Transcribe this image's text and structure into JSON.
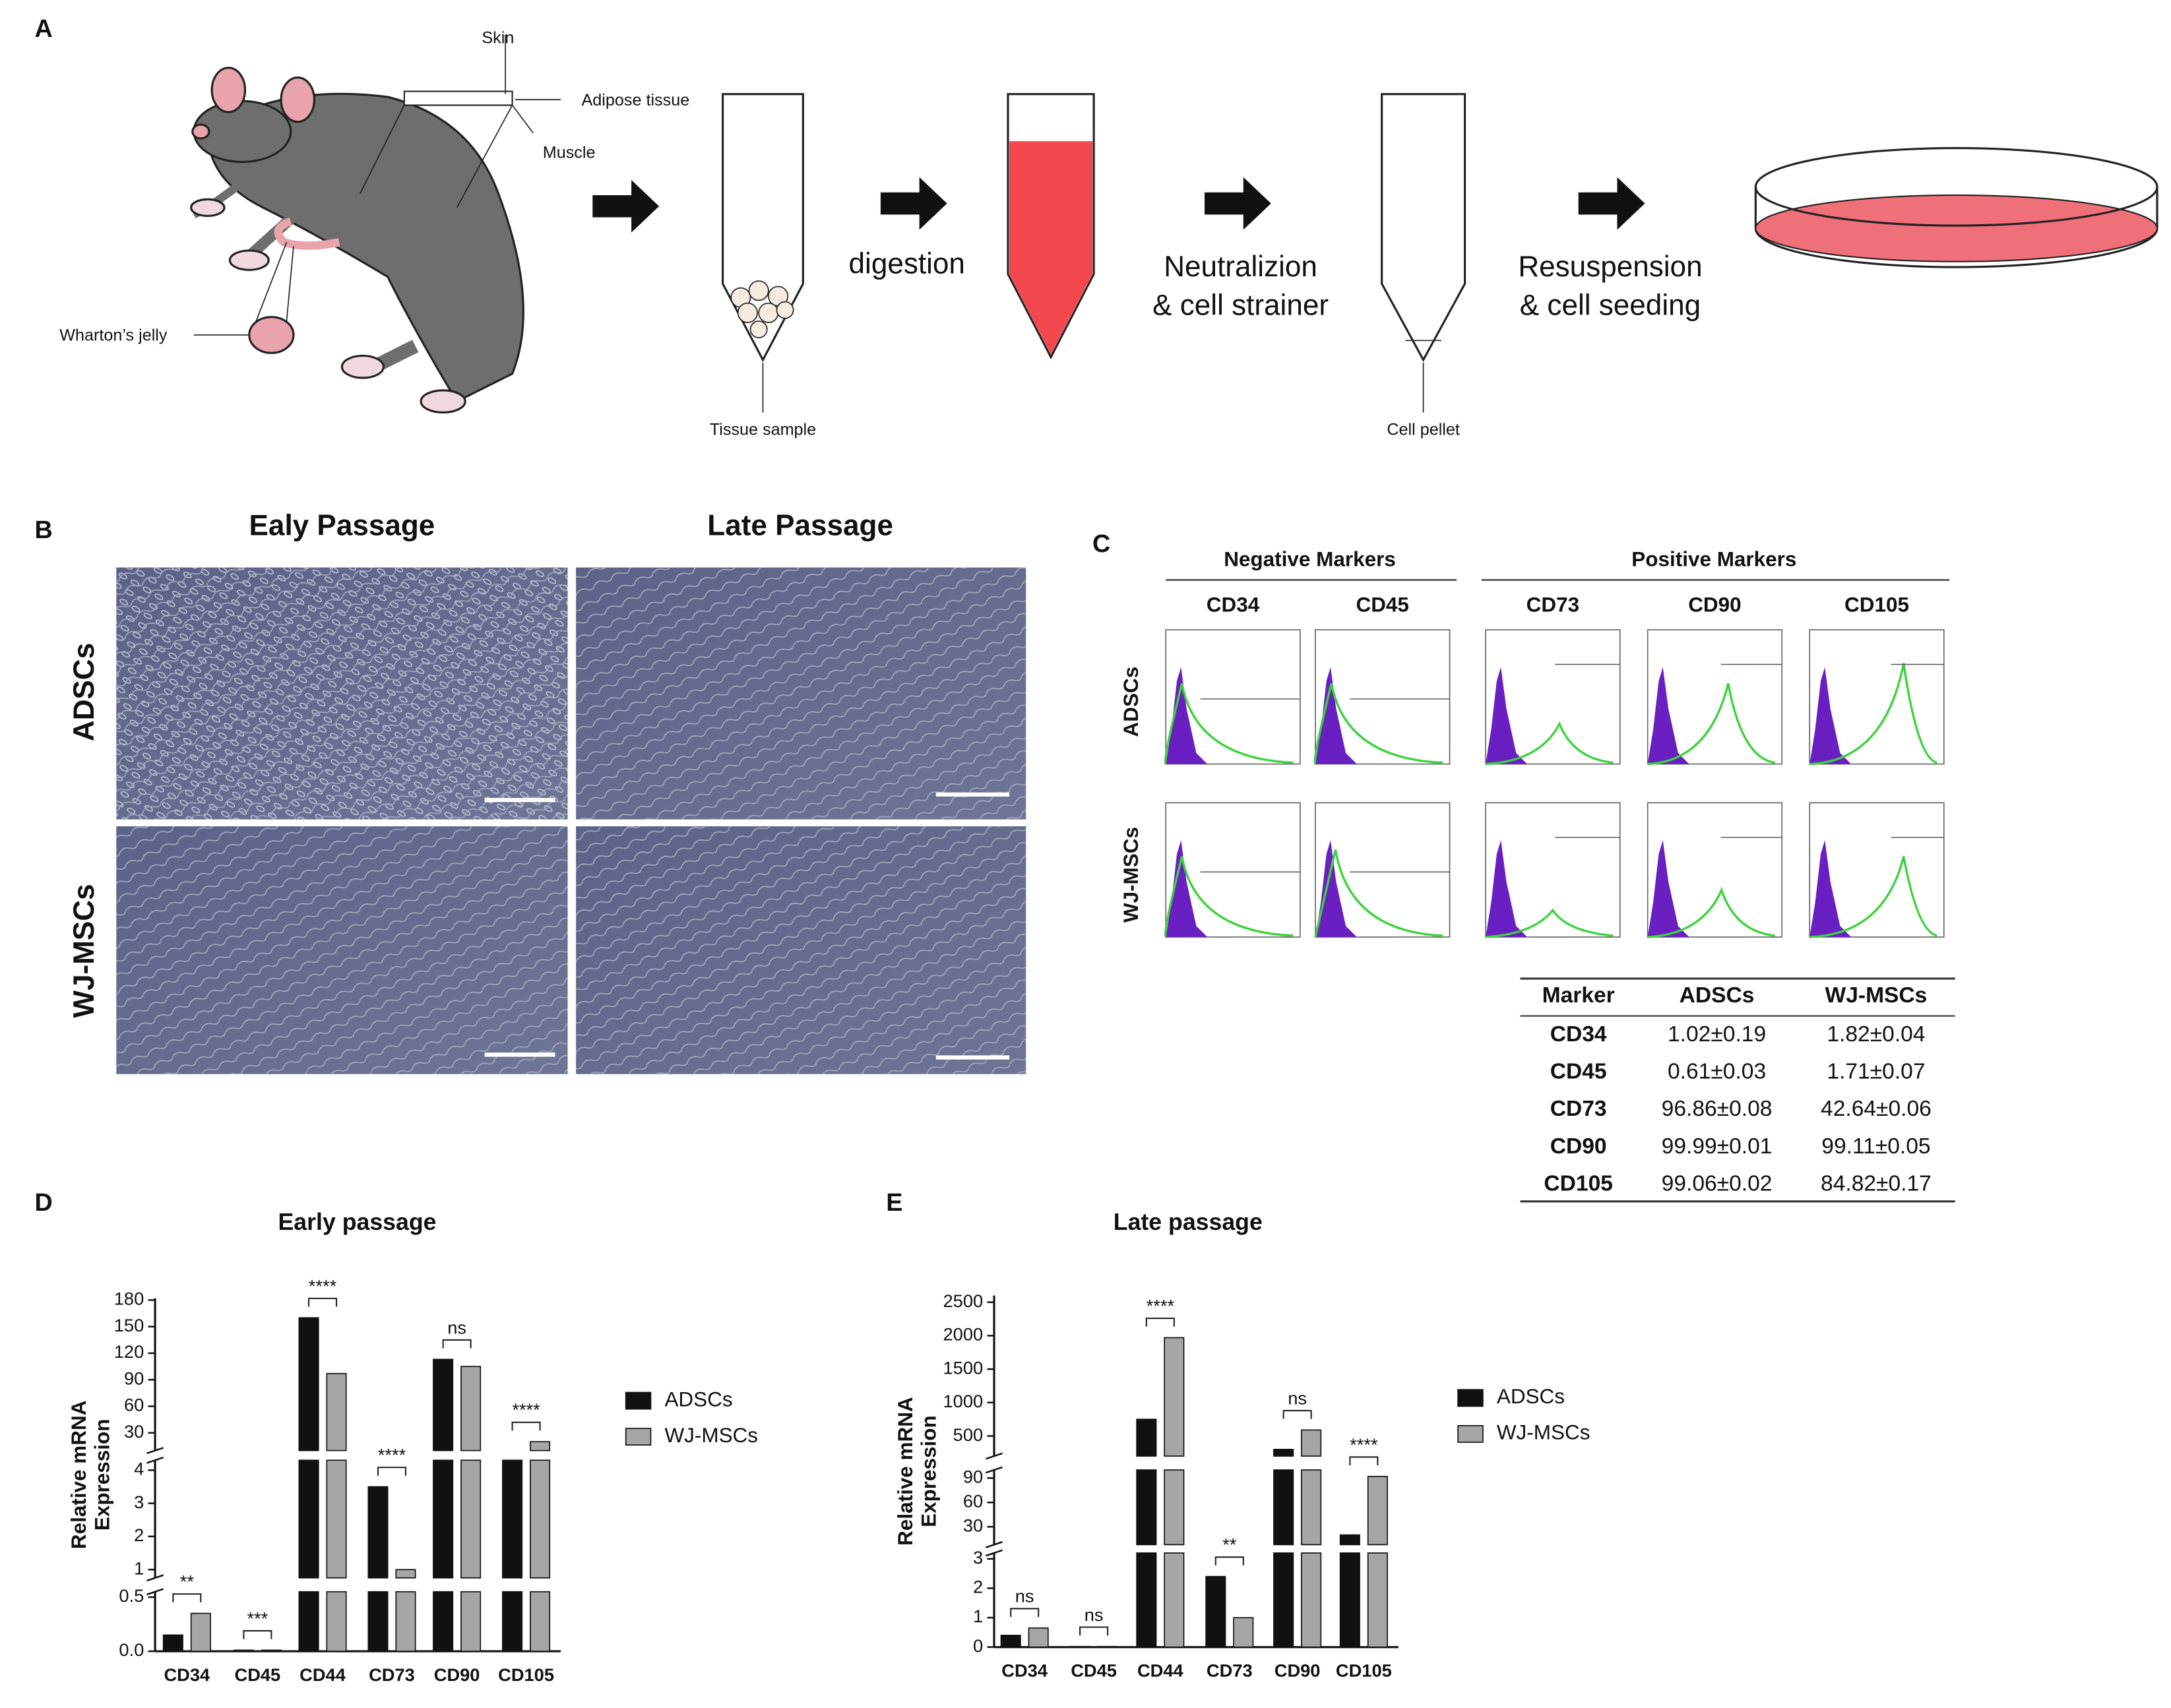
{
  "panel_labels": [
    "A",
    "B",
    "C",
    "D",
    "E"
  ],
  "diagram": {
    "labels": {
      "skin": "Skin",
      "adipose": "Adipose tissue",
      "muscle": "Muscle",
      "wharton": "Wharton’s jelly",
      "tissue_sample": "Tissue sample",
      "cell_pellet": "Cell pellet"
    },
    "steps": [
      [
        "digestion"
      ],
      [
        "Neutralizion",
        "& cell strainer"
      ],
      [
        "Resuspension",
        "& cell seeding"
      ]
    ]
  },
  "micrographs": {
    "columns": [
      "Ealy Passage",
      "Late Passage"
    ],
    "rows": [
      "ADSCs",
      "WJ-MSCs"
    ]
  },
  "flow_cytometry": {
    "groups": [
      "Negative Markers",
      "Positive Markers"
    ],
    "markers": [
      "CD34",
      "CD45",
      "CD73",
      "CD90",
      "CD105"
    ],
    "rows": [
      "ADSCs",
      "WJ-MSCs"
    ]
  },
  "table": {
    "header": [
      "Marker",
      "ADSCs",
      "WJ-MSCs"
    ],
    "rows": [
      [
        "CD34",
        "1.02±0.19",
        "1.82±0.04"
      ],
      [
        "CD45",
        "0.61±0.03",
        "1.71±0.07"
      ],
      [
        "CD73",
        "96.86±0.08",
        "42.64±0.06"
      ],
      [
        "CD90",
        "99.99±0.01",
        "99.11±0.05"
      ],
      [
        "CD105",
        "99.06±0.02",
        "84.82±0.17"
      ]
    ]
  },
  "chart_data": [
    {
      "type": "bar",
      "title": "Early passage",
      "ylabel_lines": [
        "Relative mRNA",
        "Expression"
      ],
      "categories": [
        "CD34",
        "CD45",
        "CD44",
        "CD73",
        "CD90",
        "CD105"
      ],
      "series": [
        {
          "name": "ADSCs",
          "color": "#111111",
          "values": [
            0.15,
            0.01,
            160,
            3.5,
            113,
            10
          ]
        },
        {
          "name": "WJ-MSCs",
          "color": "#a6a6a6",
          "values": [
            0.35,
            0.01,
            97,
            1.0,
            105,
            20
          ]
        }
      ],
      "y_segments": [
        {
          "ylim": [
            0,
            0.55
          ],
          "yticks": [
            {
              "value": 0,
              "label": "0.0"
            },
            {
              "value": 0.5,
              "label": "0.5"
            }
          ]
        },
        {
          "ylim": [
            0.75,
            4.3
          ],
          "yticks": [
            1,
            2,
            3,
            4
          ]
        },
        {
          "ylim": [
            10,
            182
          ],
          "yticks": [
            30,
            60,
            90,
            120,
            150,
            180
          ]
        }
      ],
      "significance": [
        "**",
        "***",
        "****",
        "****",
        "ns",
        "****"
      ]
    },
    {
      "type": "bar",
      "title": "Late passage",
      "ylabel_lines": [
        "Relative mRNA",
        "Expression"
      ],
      "categories": [
        "CD34",
        "CD45",
        "CD44",
        "CD73",
        "CD90",
        "CD105"
      ],
      "series": [
        {
          "name": "ADSCs",
          "color": "#111111",
          "values": [
            0.4,
            0.02,
            750,
            2.4,
            300,
            20
          ]
        },
        {
          "name": "WJ-MSCs",
          "color": "#a6a6a6",
          "values": [
            0.65,
            0.02,
            1970,
            1.0,
            590,
            92
          ]
        }
      ],
      "y_segments": [
        {
          "ylim": [
            0,
            3.2
          ],
          "yticks": [
            0,
            1,
            2,
            3
          ]
        },
        {
          "ylim": [
            8,
            100
          ],
          "yticks": [
            30,
            60,
            90
          ]
        },
        {
          "ylim": [
            200,
            2600
          ],
          "yticks": [
            500,
            1000,
            1500,
            2000,
            2500
          ]
        }
      ],
      "significance": [
        "ns",
        "ns",
        "****",
        "**",
        "ns",
        "****"
      ]
    }
  ]
}
